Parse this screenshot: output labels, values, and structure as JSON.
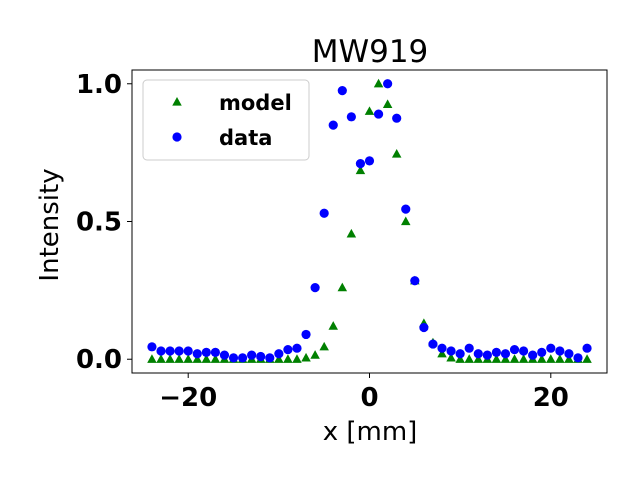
{
  "chart_data": {
    "type": "scatter",
    "title": "MW919",
    "xlabel": "x [mm]",
    "ylabel": "Intensity",
    "xlim": [
      -26.2,
      26.2
    ],
    "ylim": [
      -0.05,
      1.05
    ],
    "xticks": [
      -20,
      0,
      20
    ],
    "xtick_labels": [
      "−20",
      "0",
      "20"
    ],
    "yticks": [
      0.0,
      0.5,
      1.0
    ],
    "ytick_labels": [
      "0.0",
      "0.5",
      "1.0"
    ],
    "grid": false,
    "legend_position": "top-left",
    "series": [
      {
        "name": "model",
        "marker": "triangle",
        "color": "#008000",
        "x": [
          -24,
          -23,
          -22,
          -21,
          -20,
          -19,
          -18,
          -17,
          -16,
          -15,
          -14,
          -13,
          -12,
          -11,
          -10,
          -9,
          -8,
          -7,
          -6,
          -5,
          -4,
          -3,
          -2,
          -1,
          0,
          1,
          2,
          3,
          4,
          5,
          6,
          7,
          8,
          9,
          10,
          11,
          12,
          13,
          14,
          15,
          16,
          17,
          18,
          19,
          20,
          21,
          22,
          23,
          24
        ],
        "y": [
          0.0,
          0.0,
          0.0,
          0.0,
          0.0,
          0.0,
          0.0,
          0.0,
          0.0,
          0.0,
          0.0,
          0.0,
          0.0,
          0.0,
          0.0,
          0.0,
          0.0,
          0.005,
          0.015,
          0.045,
          0.12,
          0.26,
          0.455,
          0.685,
          0.9,
          1.0,
          0.925,
          0.745,
          0.5,
          0.285,
          0.13,
          0.06,
          0.02,
          0.005,
          0.0,
          0.0,
          0.0,
          0.0,
          0.0,
          0.0,
          0.0,
          0.0,
          0.0,
          0.0,
          0.0,
          0.0,
          0.0,
          0.0,
          0.0
        ]
      },
      {
        "name": "data",
        "marker": "circle",
        "color": "#0000ff",
        "x": [
          -24,
          -23,
          -22,
          -21,
          -20,
          -19,
          -18,
          -17,
          -16,
          -15,
          -14,
          -13,
          -12,
          -11,
          -10,
          -9,
          -8,
          -7,
          -6,
          -5,
          -4,
          -3,
          -2,
          -1,
          0,
          1,
          2,
          3,
          4,
          5,
          6,
          7,
          8,
          9,
          10,
          11,
          12,
          13,
          14,
          15,
          16,
          17,
          18,
          19,
          20,
          21,
          22,
          23,
          24
        ],
        "y": [
          0.045,
          0.03,
          0.03,
          0.03,
          0.03,
          0.02,
          0.025,
          0.025,
          0.015,
          0.005,
          0.005,
          0.015,
          0.01,
          0.005,
          0.02,
          0.035,
          0.04,
          0.09,
          0.26,
          0.53,
          0.85,
          0.975,
          0.88,
          0.71,
          0.72,
          0.89,
          1.0,
          0.875,
          0.545,
          0.285,
          0.115,
          0.055,
          0.04,
          0.03,
          0.02,
          0.04,
          0.02,
          0.015,
          0.025,
          0.02,
          0.035,
          0.03,
          0.015,
          0.025,
          0.04,
          0.03,
          0.02,
          0.005,
          0.04
        ]
      }
    ]
  }
}
